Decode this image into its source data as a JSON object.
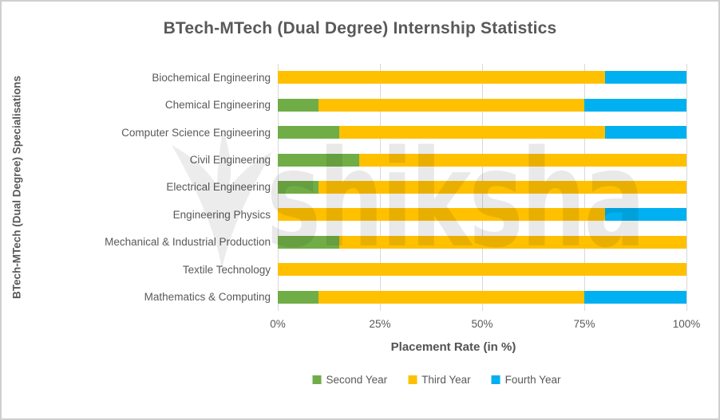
{
  "watermark": {
    "text": "shiksha"
  },
  "chart_data": {
    "type": "bar",
    "orientation": "horizontal",
    "stacked": true,
    "grid": true,
    "legend_position": "bottom",
    "title": "BTech-MTech (Dual Degree) Internship Statistics",
    "xlabel": "Placement Rate (in %)",
    "ylabel": "BTech-MTech (Dual Degree) Specialisations",
    "xlim": [
      0,
      100
    ],
    "xticks": [
      "0%",
      "25%",
      "50%",
      "75%",
      "100%"
    ],
    "xtick_values": [
      0,
      25,
      50,
      75,
      100
    ],
    "categories": [
      "Biochemical Engineering",
      "Chemical Engineering",
      "Computer Science Engineering",
      "Civil Engineering",
      "Electrical Engineering",
      "Engineering Physics",
      "Mechanical & Industrial Production",
      "Textile Technology",
      "Mathematics & Computing"
    ],
    "series": [
      {
        "name": "Second Year",
        "color": "#70AD47",
        "values": [
          0,
          10,
          15,
          20,
          10,
          0,
          15,
          0,
          10
        ]
      },
      {
        "name": "Third Year",
        "color": "#FFC000",
        "values": [
          80,
          65,
          65,
          80,
          90,
          80,
          85,
          100,
          65
        ]
      },
      {
        "name": "Fourth Year",
        "color": "#00B0F0",
        "values": [
          20,
          25,
          20,
          0,
          0,
          20,
          0,
          0,
          25
        ]
      }
    ],
    "colors": {
      "text": "#595959",
      "gridline": "#d9d9d9",
      "background": "#ffffff"
    }
  }
}
